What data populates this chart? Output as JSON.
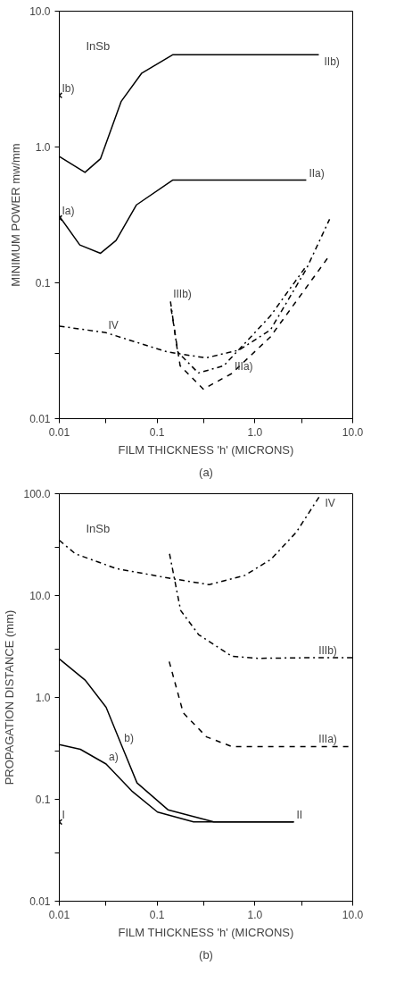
{
  "chart_data": [
    {
      "type": "line",
      "title": "(a)",
      "xlabel": "FILM THICKNESS 'h' (MICRONS)",
      "ylabel": "MINIMUM POWER mw/mm",
      "log": "xy",
      "grid": false,
      "xlim": [
        0.01,
        10.0
      ],
      "ylim": [
        0.01,
        10.0
      ],
      "xticks": [
        {
          "value": 0.01,
          "label": "0.01"
        },
        {
          "value": 0.03,
          "label": null
        },
        {
          "value": 0.1,
          "label": "0.1"
        },
        {
          "value": 0.3,
          "label": null
        },
        {
          "value": 1,
          "label": "1.0"
        },
        {
          "value": 3,
          "label": null
        },
        {
          "value": 10,
          "label": "10.0"
        }
      ],
      "yticks": [
        {
          "value": 0.01,
          "label": "0.01"
        },
        {
          "value": 0.03,
          "label": null
        },
        {
          "value": 0.1,
          "label": "0.1"
        },
        {
          "value": 1,
          "label": "1.0"
        },
        {
          "value": 10,
          "label": "10.0"
        }
      ],
      "series": [
        {
          "color": "#000000",
          "line_style": "solid",
          "x": [
            0.01,
            0.0183,
            0.0264,
            0.043,
            0.0697,
            0.144,
            4.5
          ],
          "values": [
            0.85,
            0.65,
            0.82,
            2.17,
            3.5,
            4.77,
            4.77
          ]
        },
        {
          "color": "#000000",
          "line_style": "solid",
          "x": [
            0.01,
            0.0162,
            0.0264,
            0.038,
            0.0616,
            0.144,
            3.35
          ],
          "values": [
            0.31,
            0.19,
            0.165,
            0.205,
            0.375,
            0.57,
            0.57
          ]
        },
        {
          "color": "#000000",
          "line_style": "dashdot",
          "x": [
            0.01,
            0.0298,
            0.127,
            0.316,
            0.69,
            1.44,
            3.35,
            5.8
          ],
          "values": [
            0.048,
            0.043,
            0.031,
            0.028,
            0.032,
            0.045,
            0.126,
            0.294
          ]
        },
        {
          "color": "#000000",
          "line_style": "dashdot",
          "x": [
            0.137,
            0.162,
            0.264,
            0.48,
            1.44,
            3.35
          ],
          "values": [
            0.073,
            0.031,
            0.0217,
            0.0245,
            0.057,
            0.133
          ]
        },
        {
          "color": "#000000",
          "line_style": "dashed",
          "x": [
            0.139,
            0.172,
            0.297,
            0.58,
            1.44,
            5.5
          ],
          "values": [
            0.0645,
            0.0245,
            0.0165,
            0.0215,
            0.04,
            0.151
          ]
        },
        {
          "type": "scatter",
          "marker": "cross",
          "color": "#000000",
          "x": [
            0.01,
            0.01
          ],
          "values": [
            2.4,
            0.3
          ]
        }
      ],
      "annotations": [
        "InSb",
        {
          "text": "IIb)",
          "x": 4.5,
          "y": 4.77
        },
        {
          "text": "IIa)",
          "x": 3.35,
          "y": 0.57
        },
        {
          "text": "Ib)",
          "x": 0.01,
          "y": 2.4
        },
        {
          "text": "Ia)",
          "x": 0.01,
          "y": 0.3
        },
        {
          "text": "IV",
          "x": 0.0298,
          "y": 0.043
        },
        {
          "text": "IIIb)",
          "x": 0.137,
          "y": 0.073
        },
        {
          "text": "IIIa)",
          "x": 0.58,
          "y": 0.0215
        }
      ]
    },
    {
      "type": "line",
      "title": "(b)",
      "xlabel": "FILM THICKNESS 'h' (MICRONS)",
      "ylabel": "PROPAGATION DISTANCE (mm)",
      "log": "xy",
      "grid": false,
      "xlim": [
        0.01,
        10.0
      ],
      "ylim": [
        0.01,
        100.0
      ],
      "xticks": [
        {
          "value": 0.01,
          "label": "0.01"
        },
        {
          "value": 0.03,
          "label": null
        },
        {
          "value": 0.1,
          "label": "0.1"
        },
        {
          "value": 0.3,
          "label": null
        },
        {
          "value": 1,
          "label": "1.0"
        },
        {
          "value": 3,
          "label": null
        },
        {
          "value": 10,
          "label": "10.0"
        }
      ],
      "yticks": [
        {
          "value": 0.01,
          "label": "0.01"
        },
        {
          "value": 0.03,
          "label": null
        },
        {
          "value": 0.1,
          "label": "0.1"
        },
        {
          "value": 0.3,
          "label": null
        },
        {
          "value": 1,
          "label": "1.0"
        },
        {
          "value": 3,
          "label": null
        },
        {
          "value": 10,
          "label": "10.0"
        },
        {
          "value": 30,
          "label": null
        },
        {
          "value": 100,
          "label": "100.0"
        }
      ],
      "series": [
        {
          "color": "#000000",
          "line_style": "dashdot",
          "x": [
            0.01,
            0.0146,
            0.0384,
            0.129,
            0.34,
            0.79,
            1.46,
            2.65,
            4.6
          ],
          "values": [
            34.9,
            25.7,
            18.4,
            14.9,
            12.8,
            15.8,
            22.7,
            41.9,
            95
          ]
        },
        {
          "color": "#000000",
          "line_style": "dashdot",
          "x": [
            0.134,
            0.174,
            0.266,
            0.58,
            1.07,
            4.2,
            10.0
          ],
          "values": [
            25.7,
            7.15,
            4.13,
            2.54,
            2.42,
            2.46,
            2.46
          ]
        },
        {
          "color": "#000000",
          "line_style": "dashed",
          "x": [
            0.133,
            0.185,
            0.32,
            0.58,
            4.2,
            10.0
          ],
          "values": [
            2.25,
            0.706,
            0.41,
            0.33,
            0.33,
            0.33
          ]
        },
        {
          "color": "#000000",
          "line_style": "solid",
          "x": [
            0.01,
            0.0185,
            0.0301,
            0.0433,
            0.0623,
            0.129,
            0.38,
            2.5
          ],
          "values": [
            2.39,
            1.47,
            0.8,
            0.34,
            0.145,
            0.079,
            0.06,
            0.06
          ]
        },
        {
          "color": "#000000",
          "line_style": "solid",
          "x": [
            0.01,
            0.0164,
            0.0301,
            0.055,
            0.101,
            0.236,
            2.5
          ],
          "values": [
            0.344,
            0.31,
            0.222,
            0.121,
            0.075,
            0.06,
            0.06
          ]
        },
        {
          "type": "scatter",
          "marker": "cross",
          "color": "#000000",
          "x": [
            0.01
          ],
          "values": [
            0.06
          ]
        }
      ],
      "annotations": [
        "InSb",
        {
          "text": "IV",
          "x": 4.6,
          "y": 95
        },
        {
          "text": "IIIb)",
          "x": 4.2,
          "y": 2.46
        },
        {
          "text": "IIIa)",
          "x": 4.2,
          "y": 0.33
        },
        {
          "text": "b)",
          "x": 0.0433,
          "y": 0.34
        },
        {
          "text": "a)",
          "x": 0.0301,
          "y": 0.222
        },
        {
          "text": "II",
          "x": 2.5,
          "y": 0.06
        },
        {
          "text": "I",
          "x": 0.01,
          "y": 0.06
        }
      ]
    }
  ]
}
